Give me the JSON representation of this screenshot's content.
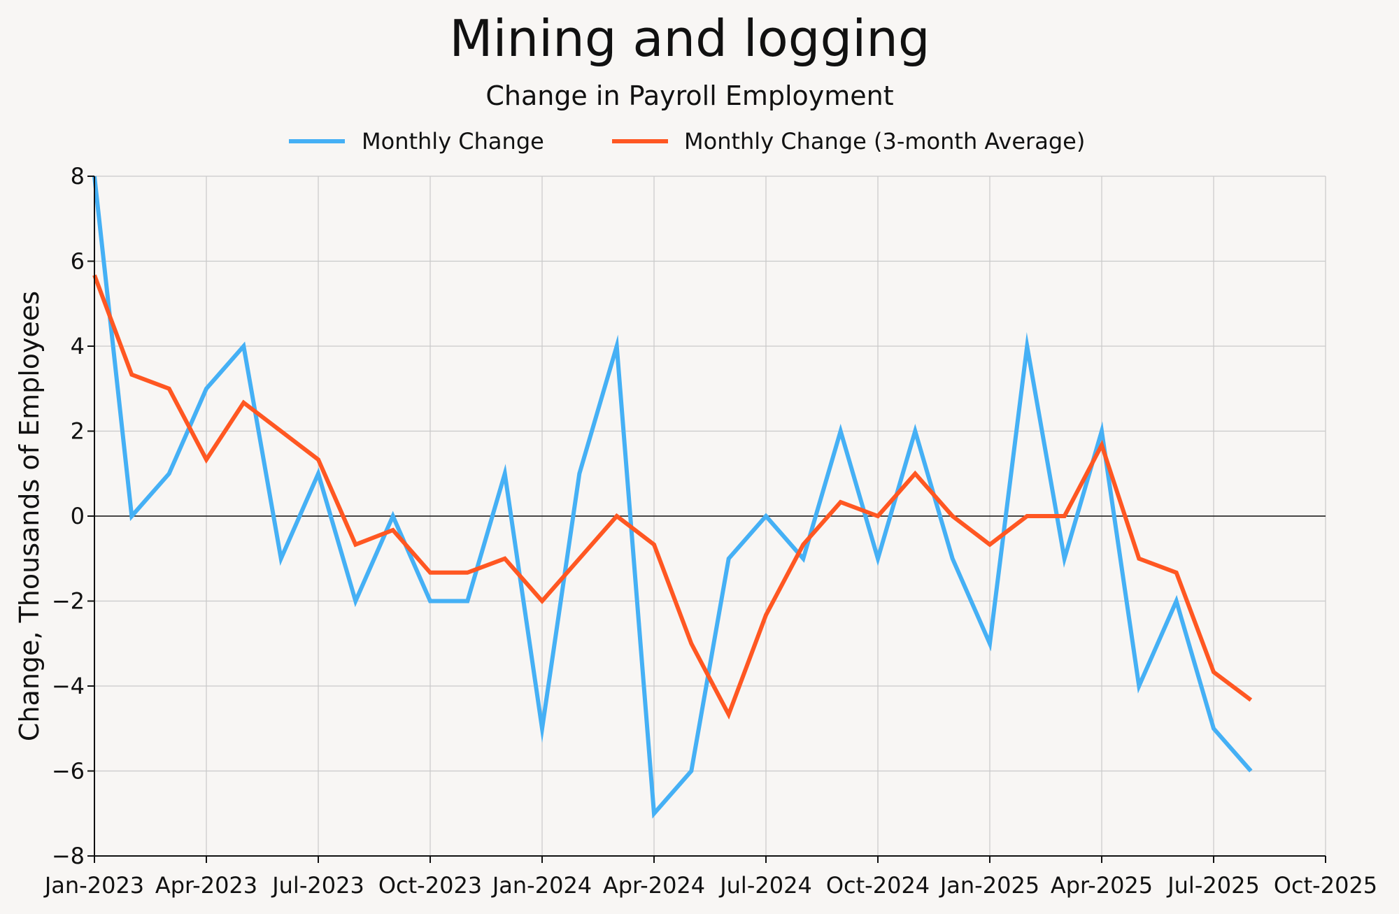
{
  "chart_data": {
    "type": "line",
    "title": "Mining and logging",
    "subtitle": "Change in Payroll Employment",
    "ylabel": "Change, Thousands of Employees",
    "xlabel": "",
    "ylim": [
      -8,
      8
    ],
    "yticks": [
      -8,
      -6,
      -4,
      -2,
      0,
      2,
      4,
      6,
      8
    ],
    "ytick_labels": [
      "−8",
      "−6",
      "−4",
      "−2",
      "0",
      "2",
      "4",
      "6",
      "8"
    ],
    "xlim": [
      0,
      33
    ],
    "xticks": [
      0,
      3,
      6,
      9,
      12,
      15,
      18,
      21,
      24,
      27,
      30,
      33
    ],
    "xtick_labels": [
      "Jan-2023",
      "Apr-2023",
      "Jul-2023",
      "Oct-2023",
      "Jan-2024",
      "Apr-2024",
      "Jul-2024",
      "Oct-2024",
      "Jan-2025",
      "Apr-2025",
      "Jul-2025",
      "Oct-2025"
    ],
    "grid": true,
    "legend_position": "top-center",
    "x": [
      0,
      1,
      2,
      3,
      4,
      5,
      6,
      7,
      8,
      9,
      10,
      11,
      12,
      13,
      14,
      15,
      16,
      17,
      18,
      19,
      20,
      21,
      22,
      23,
      24,
      25,
      26,
      27,
      28,
      29,
      30,
      31
    ],
    "series": [
      {
        "name": "Monthly Change",
        "color": "#45b0f5",
        "values": [
          8,
          0,
          1,
          3,
          4,
          -1,
          1,
          -2,
          0,
          -2,
          -2,
          1,
          -5,
          1,
          4,
          -7,
          -6,
          -1,
          0,
          -1,
          2,
          -1,
          2,
          -1,
          -3,
          4,
          -1,
          2,
          -4,
          -2,
          -5,
          -6
        ]
      },
      {
        "name": "Monthly Change (3-month Average)",
        "color": "#ff5722",
        "values": [
          5.67,
          3.33,
          3,
          1.33,
          2.67,
          2,
          1.33,
          -0.67,
          -0.33,
          -1.33,
          -1.33,
          -1,
          -2,
          -1,
          0,
          -0.67,
          -3,
          -4.67,
          -2.33,
          -0.67,
          0.33,
          0,
          1,
          0,
          -0.67,
          0,
          0,
          1.67,
          -1,
          -1.33,
          -3.67,
          -4.33
        ]
      }
    ]
  }
}
